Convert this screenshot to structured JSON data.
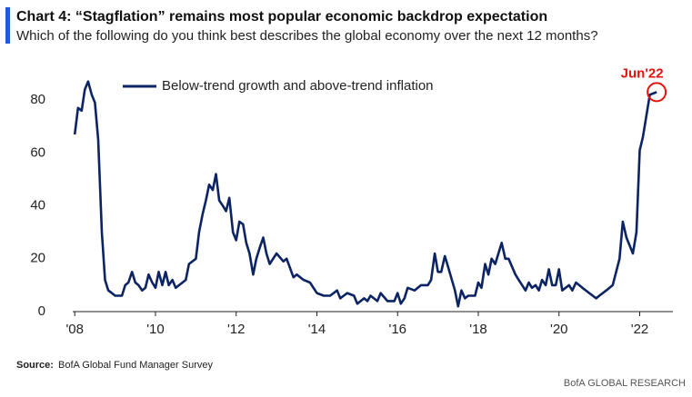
{
  "chart_data": {
    "type": "line",
    "title": "Chart 4: “Stagflation” remains most popular economic backdrop expectation",
    "subtitle": "Which of the following do you think best describes the global economy over the next 12 months?",
    "source_label": "Source:",
    "source": "BofA Global Fund Manager Survey",
    "credit": "BofA GLOBAL RESEARCH",
    "annotation": "Jun'22",
    "annotation_color": "#e3120b",
    "legend": "upper left",
    "x": [
      2008.0,
      2008.08,
      2008.17,
      2008.25,
      2008.33,
      2008.42,
      2008.5,
      2008.58,
      2008.67,
      2008.75,
      2008.83,
      2008.92,
      2009.0,
      2009.17,
      2009.25,
      2009.33,
      2009.42,
      2009.5,
      2009.58,
      2009.67,
      2009.75,
      2009.83,
      2009.92,
      2010.0,
      2010.08,
      2010.17,
      2010.25,
      2010.33,
      2010.42,
      2010.5,
      2010.67,
      2010.75,
      2010.83,
      2011.0,
      2011.08,
      2011.17,
      2011.25,
      2011.33,
      2011.42,
      2011.5,
      2011.58,
      2011.67,
      2011.75,
      2011.83,
      2011.92,
      2012.0,
      2012.08,
      2012.17,
      2012.25,
      2012.33,
      2012.42,
      2012.5,
      2012.58,
      2012.67,
      2012.75,
      2012.83,
      2013.0,
      2013.17,
      2013.25,
      2013.42,
      2013.5,
      2013.67,
      2013.83,
      2014.0,
      2014.17,
      2014.33,
      2014.5,
      2014.58,
      2014.75,
      2014.92,
      2015.0,
      2015.17,
      2015.25,
      2015.33,
      2015.5,
      2015.58,
      2015.75,
      2015.92,
      2016.0,
      2016.08,
      2016.17,
      2016.25,
      2016.42,
      2016.58,
      2016.75,
      2016.83,
      2016.92,
      2017.0,
      2017.08,
      2017.17,
      2017.25,
      2017.42,
      2017.5,
      2017.58,
      2017.67,
      2017.75,
      2017.92,
      2018.0,
      2018.08,
      2018.17,
      2018.25,
      2018.33,
      2018.42,
      2018.58,
      2018.67,
      2018.75,
      2018.92,
      2019.0,
      2019.17,
      2019.25,
      2019.33,
      2019.42,
      2019.5,
      2019.58,
      2019.67,
      2019.75,
      2019.83,
      2019.92,
      2020.0,
      2020.08,
      2020.25,
      2020.33,
      2020.42,
      2020.58,
      2020.75,
      2020.92,
      2021.0,
      2021.17,
      2021.33,
      2021.5,
      2021.58,
      2021.67,
      2021.83,
      2021.92,
      2022.0,
      2022.08,
      2022.25,
      2022.42
    ],
    "series": [
      {
        "name": "Below-trend growth and above-trend inflation",
        "color": "#0c2364",
        "values": [
          67,
          77,
          76,
          84,
          87,
          82,
          79,
          65,
          30,
          12,
          8,
          7,
          6,
          6,
          10,
          11,
          15,
          11,
          10,
          8,
          9,
          14,
          11,
          9,
          15,
          10,
          15,
          10,
          12,
          9,
          11,
          12,
          18,
          20,
          30,
          37,
          42,
          48,
          46,
          52,
          42,
          40,
          38,
          43,
          30,
          27,
          34,
          33,
          26,
          22,
          14,
          20,
          24,
          28,
          22,
          18,
          22,
          19,
          20,
          13,
          14,
          12,
          11,
          7,
          6,
          6,
          8,
          5,
          7,
          6,
          3,
          5,
          4,
          6,
          4,
          7,
          4,
          4,
          7,
          3,
          5,
          9,
          8,
          10,
          10,
          12,
          22,
          15,
          15,
          21,
          17,
          8,
          2,
          8,
          5,
          6,
          6,
          11,
          9,
          18,
          14,
          20,
          18,
          26,
          20,
          20,
          14,
          12,
          8,
          11,
          9,
          10,
          8,
          12,
          10,
          16,
          10,
          10,
          16,
          8,
          10,
          8,
          11,
          9,
          7,
          5,
          6,
          8,
          10,
          20,
          34,
          28,
          22,
          30,
          61,
          66,
          82,
          83
        ]
      }
    ],
    "xlim": [
      2007.95,
      2022.8
    ],
    "xticks": [
      {
        "value": 2008,
        "label": "'08"
      },
      {
        "value": 2010,
        "label": "'10"
      },
      {
        "value": 2012,
        "label": "'12"
      },
      {
        "value": 2014,
        "label": "'14"
      },
      {
        "value": 2016,
        "label": "'16"
      },
      {
        "value": 2018,
        "label": "'18"
      },
      {
        "value": 2020,
        "label": "'20"
      },
      {
        "value": 2022,
        "label": "'22"
      }
    ],
    "ylim": [
      0,
      90
    ],
    "yticks": [
      0,
      20,
      40,
      60,
      80
    ],
    "grid": false
  }
}
